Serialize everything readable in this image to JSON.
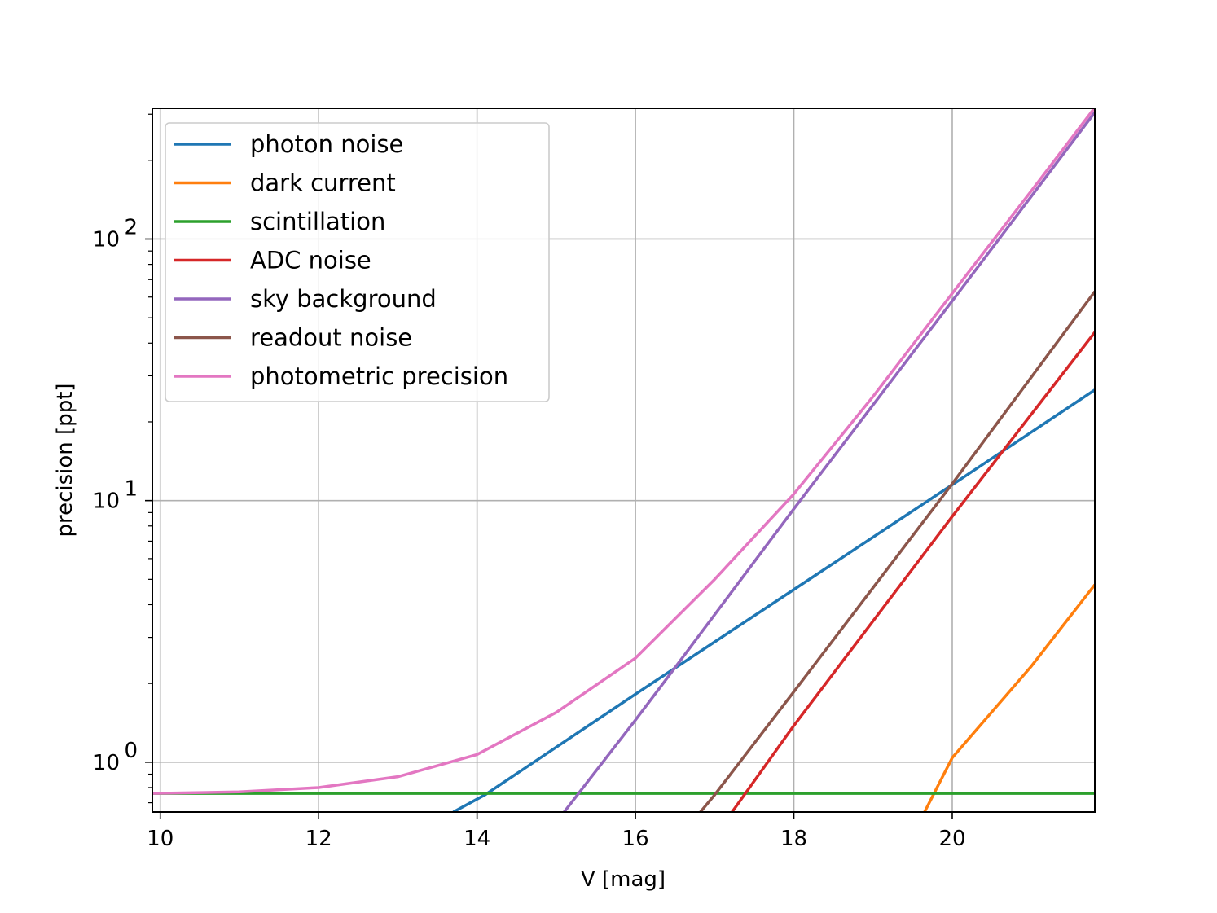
{
  "chart_data": {
    "type": "line",
    "title": "",
    "xlabel": "V [mag]",
    "ylabel": "precision [ppt]",
    "xlim": [
      9.9,
      21.8
    ],
    "ylim": [
      0.645,
      316
    ],
    "yscale": "log",
    "grid": true,
    "legend_position": "top-left",
    "x_ticks": [
      10,
      12,
      14,
      16,
      18,
      20
    ],
    "y_ticks": [
      {
        "value": 1,
        "base": "10",
        "exp": "0"
      },
      {
        "value": 10,
        "base": "10",
        "exp": "1"
      },
      {
        "value": 100,
        "base": "10",
        "exp": "2"
      }
    ],
    "series": [
      {
        "name": "photon noise",
        "color": "#1f77b4",
        "x": [
          13.7,
          14.1,
          16.0,
          18.0,
          20.0,
          21.8
        ],
        "y": [
          0.645,
          0.75,
          1.82,
          4.57,
          11.5,
          26.5
        ]
      },
      {
        "name": "dark current",
        "color": "#ff7f0e",
        "x": [
          19.65,
          20.0,
          21.0,
          21.8
        ],
        "y": [
          0.645,
          1.04,
          2.33,
          4.77
        ]
      },
      {
        "name": "scintillation",
        "color": "#2ca02c",
        "x": [
          9.9,
          21.8
        ],
        "y": [
          0.76,
          0.76
        ]
      },
      {
        "name": "ADC noise",
        "color": "#d62728",
        "x": [
          17.22,
          18.0,
          20.0,
          21.8
        ],
        "y": [
          0.645,
          1.38,
          8.7,
          44.0
        ]
      },
      {
        "name": "sky background",
        "color": "#9467bd",
        "x": [
          15.1,
          16.0,
          16.5,
          18.0,
          20.0,
          21.8
        ],
        "y": [
          0.645,
          1.45,
          2.3,
          9.3,
          58.0,
          305.0
        ]
      },
      {
        "name": "readout noise",
        "color": "#8c564b",
        "x": [
          16.82,
          17.0,
          18.0,
          20.0,
          21.8
        ],
        "y": [
          0.645,
          0.75,
          1.86,
          11.6,
          63.0
        ]
      },
      {
        "name": "photometric precision",
        "color": "#e377c2",
        "x": [
          9.9,
          11.0,
          12.0,
          13.0,
          14.0,
          15.0,
          16.0,
          17.0,
          18.0,
          19.0,
          20.0,
          21.0,
          21.8
        ],
        "y": [
          0.76,
          0.77,
          0.8,
          0.88,
          1.07,
          1.55,
          2.5,
          5.0,
          10.6,
          25.0,
          62.0,
          153.0,
          318.0
        ]
      }
    ]
  }
}
